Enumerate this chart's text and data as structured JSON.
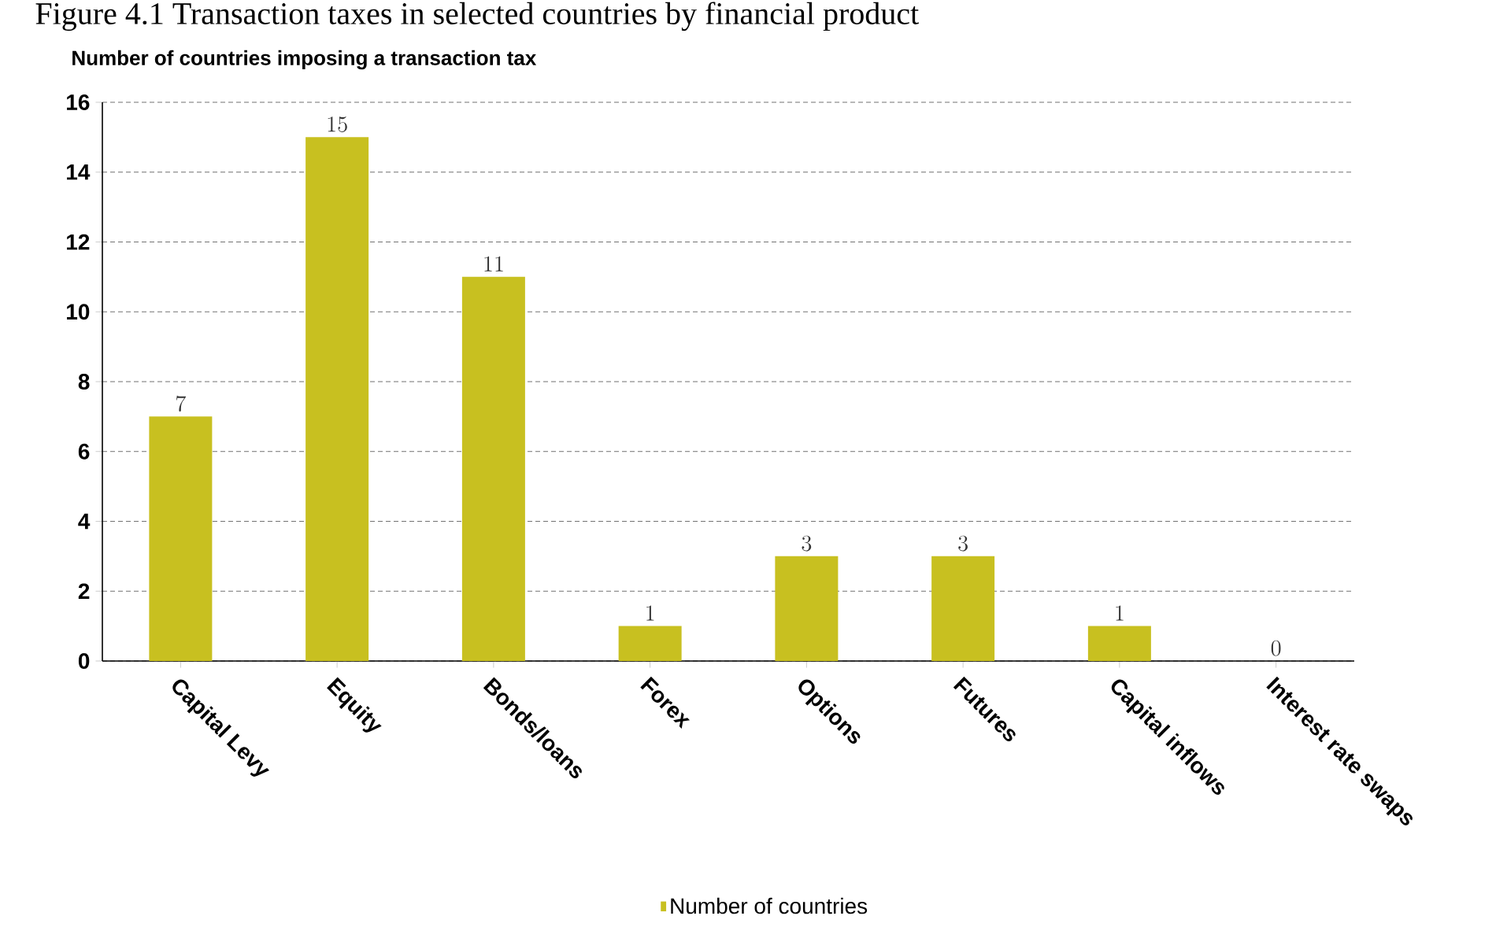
{
  "chart_data": {
    "type": "bar",
    "title": "Figure 4.1 Transaction taxes in selected countries by financial product",
    "ylabel": "Number of countries imposing a transaction tax",
    "categories": [
      "Capital Levy",
      "Equity",
      "Bonds/loans",
      "Forex",
      "Options",
      "Futures",
      "Capital inflows",
      "Interest rate swaps"
    ],
    "series": [
      {
        "name": "Number of countries",
        "color": "#c8c020",
        "values": [
          7,
          15,
          11,
          1,
          3,
          3,
          1,
          0
        ]
      }
    ],
    "ylim": [
      0,
      16
    ],
    "yticks": [
      0,
      2,
      4,
      6,
      8,
      10,
      12,
      14,
      16
    ],
    "grid": "y",
    "data_labels": true,
    "legend": "bottom"
  }
}
